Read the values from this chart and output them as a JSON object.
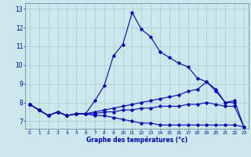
{
  "title": "Graphe des températures (°c)",
  "background_color": "#cce8ec",
  "grid_color": "#aacccc",
  "line_color": "#0000cc",
  "xlim": [
    -0.5,
    23.5
  ],
  "ylim": [
    6.6,
    13.3
  ],
  "yticks": [
    7,
    8,
    9,
    10,
    11,
    12,
    13
  ],
  "xticks": [
    0,
    1,
    2,
    3,
    4,
    5,
    6,
    7,
    8,
    9,
    10,
    11,
    12,
    13,
    14,
    15,
    16,
    17,
    18,
    19,
    20,
    21,
    22,
    23
  ],
  "line1_x": [
    0,
    1,
    2,
    3,
    4,
    5,
    6,
    7,
    8,
    9,
    10,
    11,
    12,
    13,
    14,
    15,
    16,
    17,
    18,
    19,
    20,
    21,
    22
  ],
  "line1_y": [
    7.9,
    7.6,
    7.3,
    7.5,
    7.3,
    7.4,
    7.4,
    8.1,
    8.9,
    10.5,
    11.1,
    12.8,
    11.9,
    11.5,
    10.7,
    10.4,
    10.1,
    9.9,
    9.3,
    9.1,
    8.7,
    8.0,
    8.0
  ],
  "line2_x": [
    0,
    1,
    2,
    3,
    4,
    5,
    6,
    7,
    8,
    9,
    10,
    11,
    12,
    13,
    14,
    15,
    16,
    17,
    18,
    19,
    20,
    21,
    22,
    23
  ],
  "line2_y": [
    7.9,
    7.6,
    7.3,
    7.5,
    7.3,
    7.4,
    7.4,
    7.5,
    7.6,
    7.7,
    7.8,
    7.9,
    8.0,
    8.1,
    8.2,
    8.3,
    8.4,
    8.6,
    8.7,
    9.1,
    8.6,
    8.0,
    8.1,
    6.7
  ],
  "line3_x": [
    0,
    1,
    2,
    3,
    4,
    5,
    6,
    7,
    8,
    9,
    10,
    11,
    12,
    13,
    14,
    15,
    16,
    17,
    18,
    19,
    20,
    21,
    22,
    23
  ],
  "line3_y": [
    7.9,
    7.6,
    7.3,
    7.5,
    7.3,
    7.4,
    7.4,
    7.4,
    7.5,
    7.5,
    7.6,
    7.6,
    7.7,
    7.7,
    7.8,
    7.8,
    7.8,
    7.9,
    7.9,
    8.0,
    7.9,
    7.8,
    7.8,
    6.7
  ],
  "line4_x": [
    0,
    1,
    2,
    3,
    4,
    5,
    6,
    7,
    8,
    9,
    10,
    11,
    12,
    13,
    14,
    15,
    16,
    17,
    18,
    19,
    20,
    21,
    22,
    23
  ],
  "line4_y": [
    7.9,
    7.6,
    7.3,
    7.5,
    7.3,
    7.4,
    7.4,
    7.3,
    7.3,
    7.2,
    7.1,
    7.0,
    6.9,
    6.9,
    6.8,
    6.8,
    6.8,
    6.8,
    6.8,
    6.8,
    6.8,
    6.8,
    6.8,
    6.7
  ]
}
